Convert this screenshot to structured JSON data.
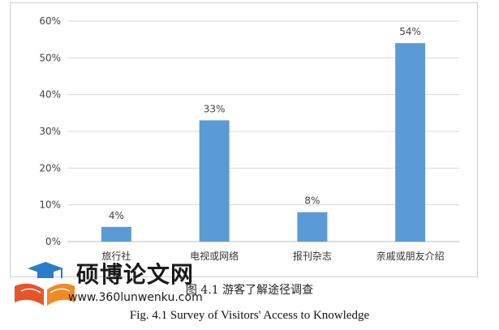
{
  "chart_data": {
    "type": "bar",
    "categories": [
      "旅行社",
      "电视或网络",
      "报刊杂志",
      "亲戚或朋友介绍"
    ],
    "values": [
      4,
      33,
      8,
      54
    ],
    "data_labels": [
      "4%",
      "33%",
      "8%",
      "54%"
    ],
    "ylim": [
      0,
      60
    ],
    "yticks": [
      0,
      10,
      20,
      30,
      40,
      50,
      60
    ],
    "ytick_labels": [
      "0%",
      "10%",
      "20%",
      "30%",
      "40%",
      "50%",
      "60%"
    ],
    "bar_color": "#5b9bd5",
    "grid": true
  },
  "caption": {
    "cn": "图 4.1   游客了解途径调查",
    "en": "Fig. 4.1 Survey of Visitors' Access to Knowledge"
  },
  "watermark": {
    "name": "硕博论文网",
    "url": "www.360lunwenku.com"
  }
}
